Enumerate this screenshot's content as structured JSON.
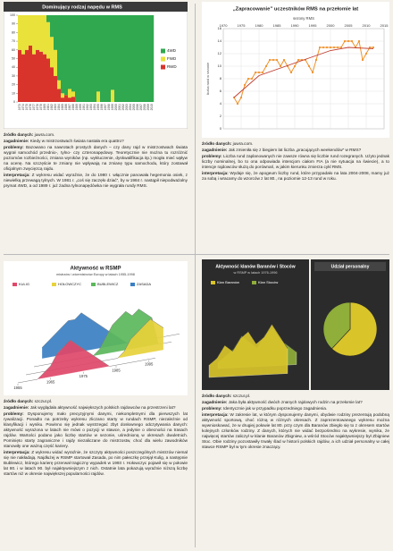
{
  "chart_data": [
    {
      "type": "stacked_bar",
      "title": "Dominujący rodzaj napędu w RMS",
      "categories": [
        "1973",
        "1974",
        "1975",
        "1976",
        "1977",
        "1978",
        "1979",
        "1980",
        "1981",
        "1982",
        "1983",
        "1984",
        "1985",
        "1986",
        "1987",
        "1988",
        "1989",
        "1990",
        "1991",
        "1992",
        "1993",
        "1994",
        "1995",
        "1996",
        "1997",
        "1998",
        "1999",
        "2000",
        "2001",
        "2002",
        "2003",
        "2004",
        "2005",
        "2006",
        "2007",
        "2008",
        "2009",
        "2010"
      ],
      "series": [
        {
          "name": "4WD",
          "color": "#2fa84f",
          "values": [
            0,
            0,
            0,
            0,
            0,
            0,
            0,
            0,
            8,
            25,
            40,
            75,
            90,
            92,
            85,
            88,
            100,
            100,
            100,
            100,
            100,
            100,
            88,
            100,
            100,
            100,
            86,
            100,
            100,
            100,
            100,
            100,
            100,
            100,
            100,
            100,
            100,
            100
          ]
        },
        {
          "name": "FWD",
          "color": "#e8e23a",
          "values": [
            40,
            45,
            40,
            35,
            45,
            40,
            42,
            45,
            42,
            35,
            30,
            10,
            5,
            0,
            10,
            6,
            0,
            0,
            0,
            0,
            0,
            0,
            12,
            0,
            0,
            0,
            14,
            0,
            0,
            0,
            0,
            0,
            0,
            0,
            0,
            0,
            0,
            0
          ]
        },
        {
          "name": "RWD",
          "color": "#d8342c",
          "values": [
            60,
            55,
            60,
            65,
            55,
            60,
            58,
            55,
            50,
            40,
            30,
            15,
            5,
            8,
            5,
            6,
            0,
            0,
            0,
            0,
            0,
            0,
            0,
            0,
            0,
            0,
            0,
            0,
            0,
            0,
            0,
            0,
            0,
            0,
            0,
            0,
            0,
            0
          ]
        }
      ],
      "ylim": [
        0,
        100
      ],
      "yticks": [
        0,
        10,
        20,
        30,
        40,
        50,
        60,
        70,
        80,
        90,
        100
      ]
    },
    {
      "type": "line",
      "title": "„Zapracowanie” uczestników RMS na przełomie lat",
      "subtitle": "sezony RMS",
      "ylabel": "liczba rund w sezonie",
      "x": [
        1973,
        1974,
        1975,
        1976,
        1977,
        1978,
        1979,
        1980,
        1981,
        1982,
        1983,
        1984,
        1985,
        1986,
        1987,
        1988,
        1989,
        1990,
        1991,
        1992,
        1993,
        1994,
        1995,
        1996,
        1997,
        1998,
        1999,
        2000,
        2001,
        2002,
        2003,
        2004,
        2005,
        2006,
        2007,
        2008,
        2009,
        2010,
        2011,
        2012
      ],
      "series": [
        {
          "color": "#f0922b",
          "values": [
            5,
            4,
            5,
            7,
            8,
            8,
            9,
            9,
            9,
            10,
            11,
            11,
            11,
            10,
            11,
            10,
            9,
            10,
            11,
            11,
            11,
            10,
            9,
            11,
            13,
            13,
            13,
            13,
            13,
            13,
            13,
            14,
            14,
            14,
            13,
            14,
            11,
            12,
            13,
            13
          ]
        }
      ],
      "trend": {
        "color": "#c0392b",
        "x": [
          1973,
          1980,
          1990,
          2000,
          2005,
          2012
        ],
        "values": [
          5,
          8.5,
          10.5,
          12.5,
          13,
          12.8
        ]
      },
      "xlim": [
        1970,
        2015
      ],
      "xticks": [
        1970,
        1975,
        1980,
        1985,
        1990,
        1995,
        2000,
        2005,
        2010,
        2015
      ],
      "ylim": [
        0,
        16
      ],
      "yticks": [
        0,
        2,
        4,
        6,
        8,
        10,
        12,
        14,
        16
      ],
      "grid": true
    },
    {
      "type": "area3d",
      "title": "Aktywność w RSMP",
      "subtitle": "mistrzów i wicemistrzów Europy w latach 1955-1998",
      "x": [
        1955,
        1957,
        1959,
        1961,
        1963,
        1965,
        1967,
        1969,
        1971,
        1973,
        1975,
        1977,
        1979,
        1981,
        1983,
        1985,
        1987,
        1989,
        1991,
        1993,
        1995,
        1997
      ],
      "series": [
        {
          "name": "KULIG",
          "color": "#e0486a",
          "values": [
            0,
            0,
            0,
            0,
            1,
            2,
            4,
            5,
            6,
            5,
            4,
            3,
            2,
            1,
            0,
            0,
            0,
            0,
            0,
            0,
            0,
            0
          ]
        },
        {
          "name": "HOŁOWCZYC",
          "color": "#e8d23a",
          "values": [
            0,
            0,
            0,
            0,
            0,
            0,
            0,
            0,
            0,
            0,
            0,
            0,
            0,
            0,
            0,
            1,
            3,
            4,
            5,
            6,
            5,
            4
          ]
        },
        {
          "name": "BUBLEWICZ",
          "color": "#5cb85c",
          "values": [
            0,
            0,
            0,
            0,
            0,
            0,
            0,
            0,
            0,
            0,
            1,
            3,
            5,
            6,
            7,
            6,
            7,
            6,
            5,
            0,
            0,
            0
          ]
        },
        {
          "name": "ZASADA",
          "color": "#3a7fc4",
          "values": [
            2,
            3,
            4,
            5,
            6,
            6,
            7,
            6,
            5,
            4,
            3,
            2,
            1,
            0,
            0,
            0,
            0,
            0,
            0,
            0,
            0,
            0
          ]
        }
      ],
      "xlim": [
        1955,
        1997
      ],
      "xticks": [
        1955,
        1965,
        1975,
        1985,
        1995
      ],
      "ylim": [
        0,
        10
      ]
    },
    {
      "type": "area3d",
      "title": "Aktywność klanów Baranów i Stoców",
      "subtitle": "w RSMP w latach 1976-1996",
      "x": [
        1976,
        1978,
        1980,
        1982,
        1984,
        1986,
        1988,
        1990,
        1992,
        1994,
        1996
      ],
      "series": [
        {
          "name": "Klan Baranów",
          "color": "#d9c42a",
          "values": [
            2,
            3,
            5,
            4,
            6,
            7,
            5,
            6,
            8,
            6,
            4
          ]
        },
        {
          "name": "Klan Stoców",
          "color": "#8fae3a",
          "values": [
            1,
            2,
            3,
            5,
            4,
            3,
            5,
            6,
            4,
            3,
            2
          ]
        }
      ],
      "xlim": [
        1976,
        1996
      ],
      "ylim": [
        0,
        10
      ]
    },
    {
      "type": "pie",
      "title": "Udział personalny",
      "values": [
        62,
        38
      ],
      "colors": [
        "#d9c42a",
        "#8fae3a"
      ]
    }
  ],
  "panels": [
    {
      "source_label": "źródło danych:",
      "source": "juwra.com.",
      "items": [
        {
          "term": "zagadnienie:",
          "text": "Kiedy w mistrzostwach świata nastała era quattro?"
        },
        {
          "term": "problemy:",
          "text": "Bazowano na nawrotach prostych danych – czy dany rajd w mistrzostwach świata wygrał samochód przednio-, tylno- czy czteronapędowy. Teoretycznie nie można tu rozróżnić poziomów rozbieżności, zmiana wyników (np. wykluczenie, dyskwalifikacja itp.) mogła mieć wpływ na ocenę. Na szczęście te zmiany nie wpływają na zmianę typu samochodu, który zostawał oficjalnym zwycięzcą rajdu."
        },
        {
          "term": "interpretacja:",
          "text": "Z wykresu widać wyraźnie, że do 1980 r. włącznie panowała hegemonia osiek, z niewielką przewagą tylnych. W 1981 r. „coś się zaczęło dziać”, by w 1984 r. nastąpił niepodważalny prymat 4WD, a od 1989 r. już żadna tylnonapędówka nie wygrała rundy RMS."
        }
      ]
    },
    {
      "source_label": "źródło danych:",
      "source": "juwra.com.",
      "items": [
        {
          "term": "zagadnienie:",
          "text": "Jak zmieniła się z biegiem lat liczba „pracujących weekendów” w RMS?"
        },
        {
          "term": "problemy:",
          "text": "Liczba rund zaplanowanych nie zawsze równa się liczbie rund rozegranych. Użyto jednak liczby nominalnej, bo to ona odpowiada intencjom ciałom FIA (a nie sytuacja na świecie), a to intencje rajdowców służą do porównań, w jakim kierunku zmierza cykl RMS."
        },
        {
          "term": "interpretacja:",
          "text": "Wydaje się, że apogeum liczby rund, które przypadało na lata 2004-2008, mamy już za sobą i wracamy do wzorców z lat 80., na poziomie 12-13 rund w roku."
        }
      ]
    },
    {
      "source_label": "źródło danych:",
      "source": "szczur.pl.",
      "items": [
        {
          "term": "zagadnienie:",
          "text": "Jak wyglądała aktywność największych polskich rajdowców na przestrzeni lat?"
        },
        {
          "term": "problemy:",
          "text": "Dysponujemy mało precyzyjnymi danymi, niekompletnymi dla pierwszych lat rywalizacji. Ponadto na potrzeby wykresu zliczano starty w rundach RSMP, niezależnie od klasyfikacji i wyniku. Powinno się jednak wystrzegać zbyt dosłownego odczytywania danych: aktywność wyrażona w latach nie mówi o pozycji w stawce, a jedynie o obecności na trasach rajdów. Wartości podano jako liczbę startów w sezonie, uśrednioną w okresach dwuletnich. Pominięto starty zagraniczne i rajdy niezaliczane do mistrzostw, choć dla wielu zawodników stanowiły one ważną część kariery."
        },
        {
          "term": "interpretacja:",
          "text": "Z wykresu widać wyraźnie, że szczyty aktywności poszczególnych mistrzów niemal się nie nakładają. Najdłużej w RSMP startował Zasada, po nim pałeczkę przejął Kulig, a następnie Bublewicz, którego karierę przerwał tragiczny wypadek w 1993 r. Hołowczyc pojawił się w połowie lat 80. i w latach 90. był najaktywniejszym z nich. Ostatnie lata pokazują wyraźnie niższą liczbę startów niż w okresie największej popularności rajdów."
        }
      ]
    },
    {
      "source_label": "źródło danych:",
      "source": "szczur.pl.",
      "items": [
        {
          "term": "zagadnienie:",
          "text": "Jaka była aktywność dwóch znanych rajdowych rodzin na przełomie lat?"
        },
        {
          "term": "problemy:",
          "text": "Identycznie jak w przypadku poprzedniego zagadnienia."
        },
        {
          "term": "interpretacja:",
          "text": "W zakresie lat, w którym dysponujemy danymi, obydwie rodziny prezentują podobną aktywność sportową, choć różną w różnych okresach. Z zaprezentowanego wykresu można wywnioskować, że w drugiej połowie lat 80. przy czym dla Baranów zbiegło się to z okresem startów kolejnych członków rodziny. Z danych, których nie widać bezpośrednio na wykresie, wynika, że najwięcej startów zaliczył w klanie Baranów Zbigniew, a wśród Stoców najaktywniejszy był Zbigniew Stoc. Obie rodziny pozostawiły trwały ślad w historii polskich rajdów, a ich udział personalny w całej stawce RSMP był w tym okresie znaczący."
        }
      ]
    }
  ]
}
